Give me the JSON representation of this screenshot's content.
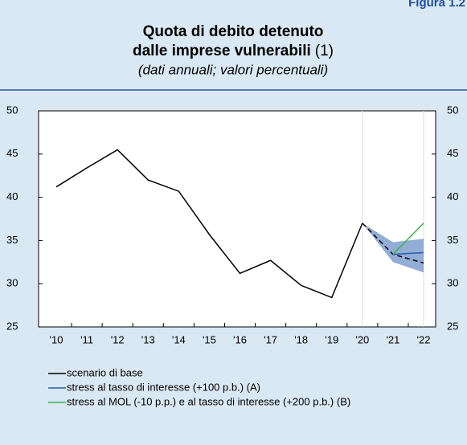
{
  "figure_label": "Figura 1.2",
  "chart_data": {
    "type": "line",
    "title_line1": "Quota di debito detenuto",
    "title_line2": "dalle imprese vulnerabili",
    "title_note": "(1)",
    "subtitle": "(dati annuali; valori percentuali)",
    "categories": [
      "'10",
      "'11",
      "'12",
      "'13",
      "'14",
      "'15",
      "'16",
      "'17",
      "'18",
      "'19",
      "'20",
      "'21",
      "'22"
    ],
    "forecast_start": "'20",
    "series": [
      {
        "name": "scenario di base",
        "color": "#000000",
        "values": [
          41.2,
          43.4,
          45.5,
          42.0,
          40.7,
          35.7,
          31.2,
          32.7,
          29.8,
          28.4,
          37.0,
          33.4,
          32.4
        ]
      },
      {
        "name": "stress al tasso di interesse (+100 p.b.) (A)",
        "color": "#2a5db0",
        "values": [
          null,
          null,
          null,
          null,
          null,
          null,
          null,
          null,
          null,
          null,
          null,
          33.4,
          33.6
        ]
      },
      {
        "name": "stress al MOL (-10 p.p.) e al tasso di interesse (+200 p.b.) (B)",
        "color": "#3cb44b",
        "values": [
          null,
          null,
          null,
          null,
          null,
          null,
          null,
          null,
          null,
          null,
          null,
          33.4,
          37.0
        ]
      }
    ],
    "band": {
      "color": "#7f9fcf",
      "lower": [
        null,
        null,
        null,
        null,
        null,
        null,
        null,
        null,
        null,
        null,
        37.0,
        32.5,
        31.3
      ],
      "upper": [
        null,
        null,
        null,
        null,
        null,
        null,
        null,
        null,
        null,
        null,
        37.0,
        34.8,
        35.2
      ]
    },
    "ylim": [
      25,
      50
    ],
    "yticks": [
      25,
      30,
      35,
      40,
      45,
      50
    ],
    "y2ticks": [
      25,
      30,
      35,
      40,
      45,
      50
    ]
  }
}
